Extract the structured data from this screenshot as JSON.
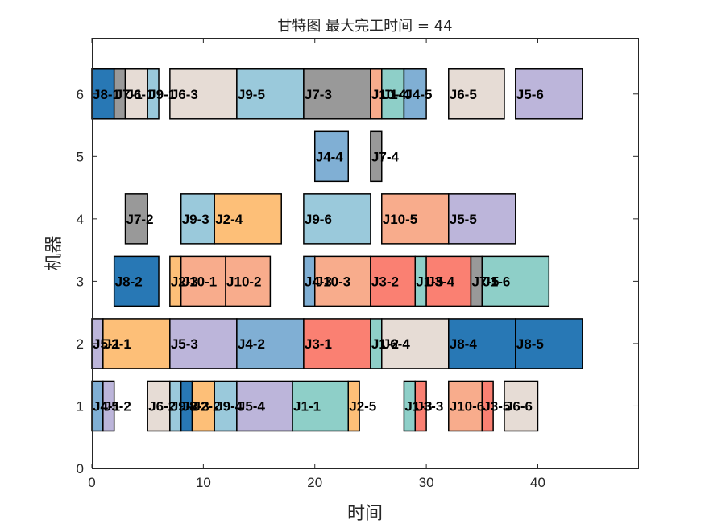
{
  "chart_data": {
    "type": "gantt",
    "title": "甘特图 最大完工时间 = 44",
    "xlabel": "时间",
    "ylabel": "机器",
    "xlim": [
      0,
      49
    ],
    "ylim": [
      0,
      6.9
    ],
    "xticks": [
      0,
      10,
      20,
      30,
      40
    ],
    "yticks": [
      0,
      1,
      2,
      3,
      4,
      5,
      6
    ],
    "bar_height": 0.8,
    "grid": false,
    "job_colors": {
      "J1": "#8ecfc8",
      "J2": "#fdbf78",
      "J3": "#fa8072",
      "J4": "#80afd4",
      "J5": "#bcb5da",
      "J6": "#e6dcd5",
      "J7": "#999999",
      "J8": "#2878b5",
      "J9": "#9ac9db",
      "J10": "#f8ac8c"
    },
    "tasks": [
      {
        "machine": 6,
        "start": 0,
        "end": 2,
        "job": "J8",
        "label": "J8-1"
      },
      {
        "machine": 6,
        "start": 2,
        "end": 3,
        "job": "J7",
        "label": "J7-1"
      },
      {
        "machine": 6,
        "start": 3,
        "end": 5,
        "job": "J6",
        "label": "J6-1"
      },
      {
        "machine": 6,
        "start": 5,
        "end": 6,
        "job": "J9",
        "label": "J9-1"
      },
      {
        "machine": 6,
        "start": 7,
        "end": 13,
        "job": "J6",
        "label": "J6-3"
      },
      {
        "machine": 6,
        "start": 13,
        "end": 19,
        "job": "J9",
        "label": "J9-5"
      },
      {
        "machine": 6,
        "start": 19,
        "end": 25,
        "job": "J7",
        "label": "J7-3"
      },
      {
        "machine": 6,
        "start": 25,
        "end": 26,
        "job": "J10",
        "label": "J10-4"
      },
      {
        "machine": 6,
        "start": 26,
        "end": 28,
        "job": "J1",
        "label": "J1-4"
      },
      {
        "machine": 6,
        "start": 28,
        "end": 30,
        "job": "J4",
        "label": "J4-5"
      },
      {
        "machine": 6,
        "start": 32,
        "end": 37,
        "job": "J6",
        "label": "J6-5"
      },
      {
        "machine": 6,
        "start": 38,
        "end": 44,
        "job": "J5",
        "label": "J5-6"
      },
      {
        "machine": 5,
        "start": 20,
        "end": 23,
        "job": "J4",
        "label": "J4-4"
      },
      {
        "machine": 5,
        "start": 25,
        "end": 26,
        "job": "J7",
        "label": "J7-4"
      },
      {
        "machine": 4,
        "start": 3,
        "end": 5,
        "job": "J7",
        "label": "J7-2"
      },
      {
        "machine": 4,
        "start": 8,
        "end": 11,
        "job": "J9",
        "label": "J9-3"
      },
      {
        "machine": 4,
        "start": 11,
        "end": 17,
        "job": "J2",
        "label": "J2-4"
      },
      {
        "machine": 4,
        "start": 19,
        "end": 25,
        "job": "J9",
        "label": "J9-6"
      },
      {
        "machine": 4,
        "start": 26,
        "end": 32,
        "job": "J10",
        "label": "J10-5"
      },
      {
        "machine": 4,
        "start": 32,
        "end": 38,
        "job": "J5",
        "label": "J5-5"
      },
      {
        "machine": 3,
        "start": 2,
        "end": 6,
        "job": "J8",
        "label": "J8-2"
      },
      {
        "machine": 3,
        "start": 7,
        "end": 8,
        "job": "J2",
        "label": "J2-3"
      },
      {
        "machine": 3,
        "start": 8,
        "end": 12,
        "job": "J10",
        "label": "J10-1"
      },
      {
        "machine": 3,
        "start": 12,
        "end": 16,
        "job": "J10",
        "label": "J10-2"
      },
      {
        "machine": 3,
        "start": 19,
        "end": 20,
        "job": "J4",
        "label": "J4-3"
      },
      {
        "machine": 3,
        "start": 20,
        "end": 25,
        "job": "J10",
        "label": "J10-3"
      },
      {
        "machine": 3,
        "start": 25,
        "end": 29,
        "job": "J3",
        "label": "J3-2"
      },
      {
        "machine": 3,
        "start": 29,
        "end": 30,
        "job": "J1",
        "label": "J1-5"
      },
      {
        "machine": 3,
        "start": 30,
        "end": 34,
        "job": "J3",
        "label": "J3-4"
      },
      {
        "machine": 3,
        "start": 34,
        "end": 35,
        "job": "J7",
        "label": "J7-5"
      },
      {
        "machine": 3,
        "start": 35,
        "end": 41,
        "job": "J1",
        "label": "J1-6"
      },
      {
        "machine": 2,
        "start": 0,
        "end": 1,
        "job": "J5",
        "label": "J5-1"
      },
      {
        "machine": 2,
        "start": 1,
        "end": 7,
        "job": "J2",
        "label": "J2-1"
      },
      {
        "machine": 2,
        "start": 7,
        "end": 13,
        "job": "J5",
        "label": "J5-3"
      },
      {
        "machine": 2,
        "start": 13,
        "end": 19,
        "job": "J4",
        "label": "J4-2"
      },
      {
        "machine": 2,
        "start": 19,
        "end": 25,
        "job": "J3",
        "label": "J3-1"
      },
      {
        "machine": 2,
        "start": 25,
        "end": 26,
        "job": "J1",
        "label": "J1-2"
      },
      {
        "machine": 2,
        "start": 26,
        "end": 32,
        "job": "J6",
        "label": "J6-4"
      },
      {
        "machine": 2,
        "start": 32,
        "end": 38,
        "job": "J8",
        "label": "J8-4"
      },
      {
        "machine": 2,
        "start": 38,
        "end": 44,
        "job": "J8",
        "label": "J8-5"
      },
      {
        "machine": 1,
        "start": 0,
        "end": 1,
        "job": "J4",
        "label": "J4-1"
      },
      {
        "machine": 1,
        "start": 1,
        "end": 2,
        "job": "J5",
        "label": "J5-2"
      },
      {
        "machine": 1,
        "start": 5,
        "end": 7,
        "job": "J6",
        "label": "J6-2"
      },
      {
        "machine": 1,
        "start": 7,
        "end": 8,
        "job": "J9",
        "label": "J9-2"
      },
      {
        "machine": 1,
        "start": 8,
        "end": 9,
        "job": "J8",
        "label": "J8-3"
      },
      {
        "machine": 1,
        "start": 9,
        "end": 11,
        "job": "J2",
        "label": "J2-2"
      },
      {
        "machine": 1,
        "start": 11,
        "end": 13,
        "job": "J9",
        "label": "J9-4"
      },
      {
        "machine": 1,
        "start": 13,
        "end": 18,
        "job": "J5",
        "label": "J5-4"
      },
      {
        "machine": 1,
        "start": 18,
        "end": 23,
        "job": "J1",
        "label": "J1-1"
      },
      {
        "machine": 1,
        "start": 23,
        "end": 24,
        "job": "J2",
        "label": "J2-5"
      },
      {
        "machine": 1,
        "start": 28,
        "end": 29,
        "job": "J1",
        "label": "J1-3"
      },
      {
        "machine": 1,
        "start": 29,
        "end": 30,
        "job": "J3",
        "label": "J3-3"
      },
      {
        "machine": 1,
        "start": 32,
        "end": 35,
        "job": "J10",
        "label": "J10-6"
      },
      {
        "machine": 1,
        "start": 35,
        "end": 36,
        "job": "J3",
        "label": "J3-5"
      },
      {
        "machine": 1,
        "start": 37,
        "end": 40,
        "job": "J6",
        "label": "J6-6"
      }
    ]
  }
}
